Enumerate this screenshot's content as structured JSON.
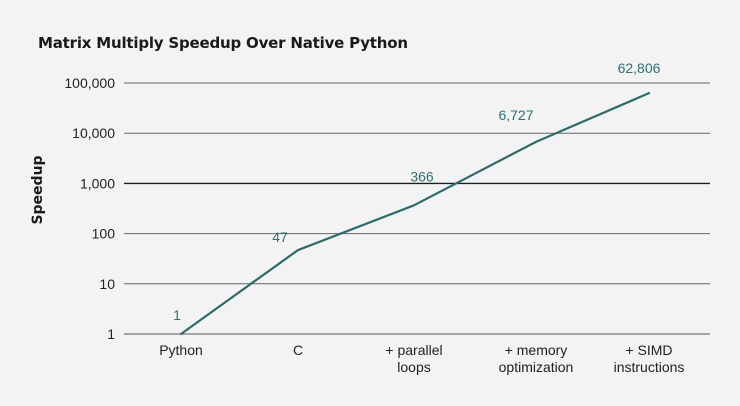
{
  "chart_data": {
    "type": "line",
    "title": "Matrix Multiply Speedup Over Native Python",
    "xlabel": "",
    "ylabel": "Speedup",
    "yscale": "log",
    "ylim": [
      1,
      100000
    ],
    "yticks": [
      1,
      10,
      100,
      1000,
      10000,
      100000
    ],
    "ytick_labels": [
      "1",
      "10",
      "100",
      "1,000",
      "10,000",
      "100,000"
    ],
    "categories": [
      [
        "Python"
      ],
      [
        "C"
      ],
      [
        "+ parallel",
        "loops"
      ],
      [
        "+ memory",
        "optimization"
      ],
      [
        "+ SIMD",
        "instructions"
      ]
    ],
    "series": [
      {
        "name": "Speedup",
        "values": [
          1,
          47,
          366,
          6727,
          62806
        ],
        "labels": [
          "1",
          "47",
          "366",
          "6,727",
          "62,806"
        ]
      }
    ],
    "grid": true,
    "colors": {
      "line": "#2e6b6b",
      "label": "#2e7070",
      "grid": "#444444",
      "background": "#f3f3f3"
    }
  }
}
